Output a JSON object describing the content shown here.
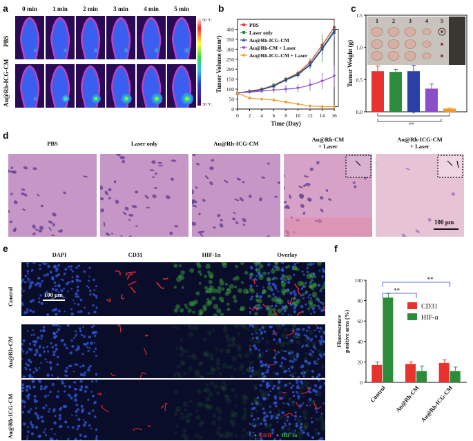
{
  "panels": {
    "a": {
      "letter": "a",
      "times": [
        "0 min",
        "1 min",
        "2 min",
        "3 min",
        "4 min",
        "5 min"
      ],
      "rows": [
        "PBS",
        "Au@Rh-ICG-CM"
      ],
      "colorbar_max": "50 °C",
      "colorbar_min": "30 °C",
      "hot_level": [
        [
          0,
          0.05,
          0.1,
          0.15,
          0.2,
          0.25
        ],
        [
          0,
          0.45,
          0.65,
          0.8,
          0.9,
          1.0
        ]
      ]
    },
    "b": {
      "letter": "b",
      "xlabel": "Time (Day)",
      "ylabel": "Tumor Volume (mm³)",
      "significance": "**"
    },
    "c": {
      "letter": "c",
      "ylabel": "Tumor Weight (g)",
      "photo_labels": [
        "1",
        "2",
        "3",
        "4",
        "5"
      ],
      "significance_top": "*",
      "significance_bottom": "**"
    },
    "d": {
      "letter": "d",
      "titles": [
        "PBS",
        "Laser only",
        "Au@Rh-ICG-CM",
        "Au@Rh-CM\n+ Laser",
        "Au@Rh-ICG-CM\n+ Laser"
      ],
      "scale_bar": "100 μm"
    },
    "e": {
      "letter": "e",
      "columns": [
        "DAPI",
        "CD31",
        "HIF-1α",
        "Overlay"
      ],
      "rows": [
        "Control",
        "Au@Rh-CM",
        "Au@Rh-ICG-CM"
      ],
      "scale_bar": "100 μm",
      "overlay_legend_cd31": "CD31",
      "overlay_legend_hif": "HIF-1α",
      "plus": "+"
    },
    "f": {
      "letter": "f",
      "ylabel": "Fluorescence positive area (%)",
      "significance": "**"
    }
  },
  "chart_data": [
    {
      "id": "b",
      "type": "line",
      "xlabel": "Time (Day)",
      "ylabel": "Tumor Volume (mm³)",
      "x": [
        0,
        2,
        4,
        6,
        8,
        10,
        12,
        14,
        16
      ],
      "xlim": [
        0,
        16
      ],
      "ylim": [
        0,
        450
      ],
      "xticks": [
        0,
        2,
        4,
        6,
        8,
        10,
        12,
        14,
        16
      ],
      "yticks": [
        0,
        50,
        100,
        150,
        200,
        250,
        300,
        350,
        400
      ],
      "legend_position": "top-left",
      "series": [
        {
          "name": "PBS",
          "color": "#e8322e",
          "marker": "circle",
          "values": [
            80,
            90,
            100,
            120,
            150,
            180,
            235,
            320,
            410
          ],
          "errors": [
            5,
            5,
            8,
            10,
            12,
            15,
            20,
            30,
            35
          ]
        },
        {
          "name": "Laser only",
          "color": "#2e8b3a",
          "marker": "square",
          "values": [
            80,
            88,
            98,
            118,
            148,
            175,
            225,
            305,
            395
          ],
          "errors": [
            5,
            5,
            8,
            10,
            12,
            15,
            20,
            70,
            40
          ]
        },
        {
          "name": "Au@Rh-ICG-CM",
          "color": "#2b3fa8",
          "marker": "triangle",
          "values": [
            80,
            87,
            97,
            115,
            145,
            172,
            220,
            300,
            385
          ],
          "errors": [
            5,
            5,
            8,
            10,
            12,
            15,
            20,
            30,
            35
          ]
        },
        {
          "name": "Au@Rh-CM + Laser",
          "color": "#8a4fc8",
          "marker": "triangle-down",
          "values": [
            80,
            85,
            90,
            95,
            100,
            105,
            120,
            140,
            165
          ],
          "errors": [
            5,
            8,
            10,
            15,
            20,
            20,
            30,
            40,
            55
          ]
        },
        {
          "name": "Au@Rh-ICG-CM + Laser",
          "color": "#f09a26",
          "marker": "diamond",
          "values": [
            80,
            55,
            50,
            45,
            35,
            25,
            15,
            12,
            12
          ],
          "errors": [
            5,
            5,
            5,
            5,
            5,
            5,
            3,
            3,
            3
          ]
        }
      ]
    },
    {
      "id": "c",
      "type": "bar",
      "ylabel": "Tumor Weight (g)",
      "categories": [
        "1",
        "2",
        "3",
        "4",
        "5"
      ],
      "values": [
        0.63,
        0.62,
        0.63,
        0.36,
        0.05
      ],
      "errors": [
        0.08,
        0.04,
        0.09,
        0.07,
        0.01
      ],
      "colors": [
        "#e8322e",
        "#2e8b3a",
        "#2b3fa8",
        "#8a4fc8",
        "#f09a26"
      ],
      "ylim": [
        0,
        1.5
      ],
      "yticks": [
        0.0,
        0.5,
        1.0,
        1.5
      ]
    },
    {
      "id": "f",
      "type": "bar",
      "ylabel": "Fluorescence positive area (%)",
      "categories": [
        "Control",
        "Au@Rh-CM",
        "Au@Rh-ICG-CM"
      ],
      "series": [
        {
          "name": "CD31",
          "color": "#e8322e",
          "values": [
            17,
            18,
            19
          ],
          "errors": [
            3,
            2,
            3
          ]
        },
        {
          "name": "HIF-α",
          "color": "#2e8b3a",
          "values": [
            83,
            11,
            11
          ],
          "errors": [
            4,
            5,
            4
          ]
        }
      ],
      "ylim": [
        0,
        100
      ],
      "yticks": [
        0,
        20,
        40,
        60,
        80,
        100
      ],
      "legend_position": "center-right"
    }
  ]
}
